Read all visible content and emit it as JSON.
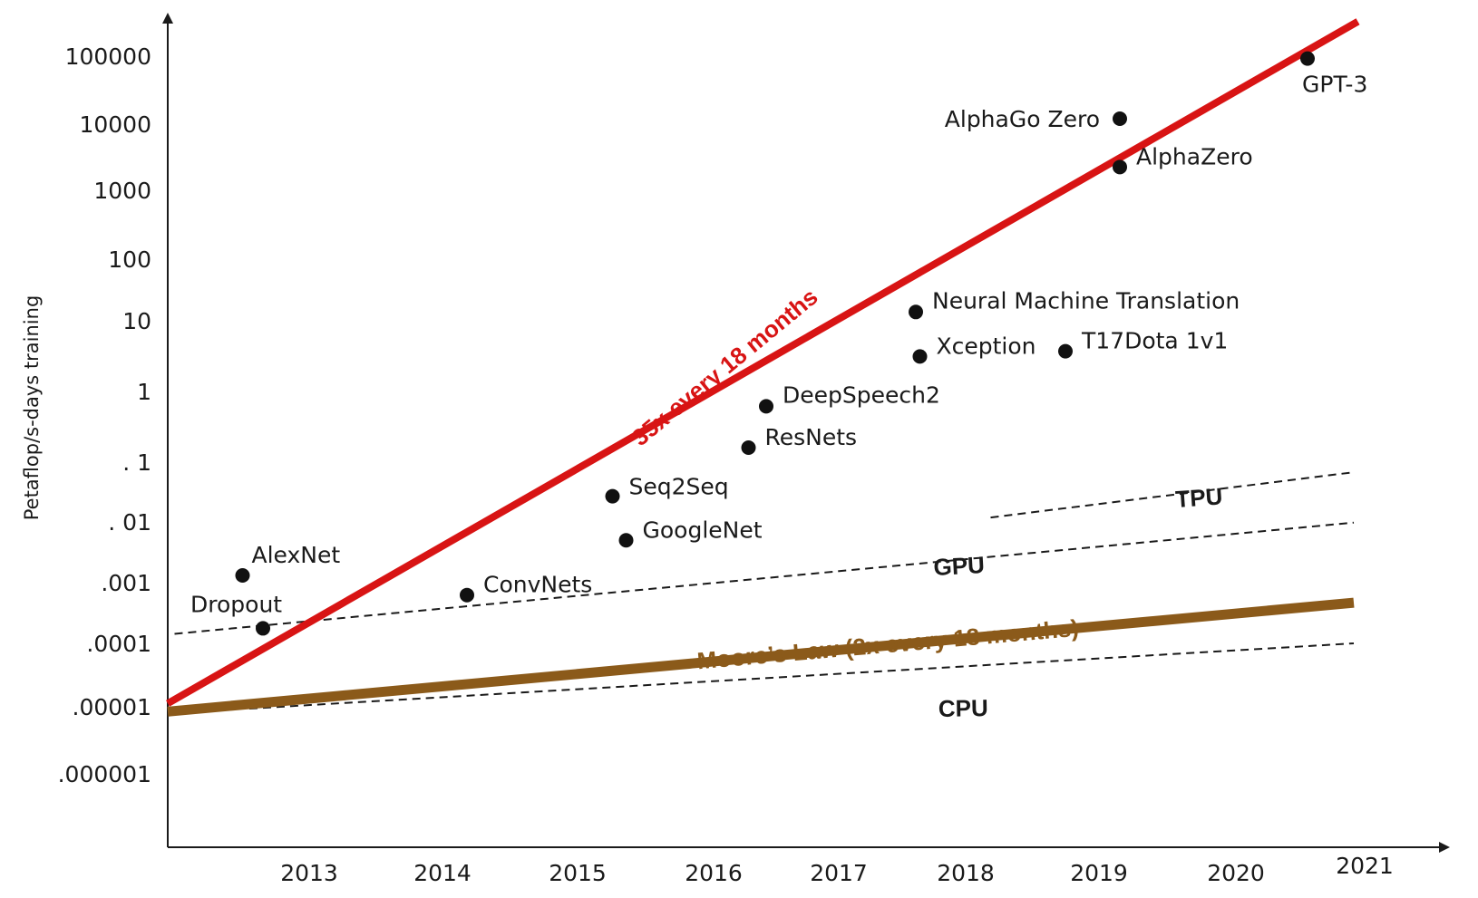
{
  "chart_data": {
    "type": "scatter",
    "ylabel": "Petaflop/s-days training",
    "y_scale": "log",
    "y_ticks": [
      "100000",
      "10000",
      "1000",
      "100",
      "10",
      "1",
      ". 1",
      ". 01",
      ".001",
      ".0001",
      ".00001",
      ".000001"
    ],
    "x_ticks": [
      "2013",
      "2014",
      "2015",
      "2016",
      "2017",
      "2018",
      "2019",
      "2020",
      "2021"
    ],
    "points": [
      {
        "label": "AlexNet",
        "x": 2012.55,
        "y": 0.0011
      },
      {
        "label": "Dropout",
        "x": 2012.7,
        "y": 0.00017
      },
      {
        "label": "ConvNets",
        "x": 2014.2,
        "y": 0.00055
      },
      {
        "label": "Seq2Seq",
        "x": 2015.27,
        "y": 0.018
      },
      {
        "label": "GoogleNet",
        "x": 2015.37,
        "y": 0.0038
      },
      {
        "label": "ResNets",
        "x": 2016.27,
        "y": 0.1
      },
      {
        "label": "DeepSpeech2",
        "x": 2016.4,
        "y": 0.43
      },
      {
        "label": "Neural Machine Translation",
        "x": 2017.5,
        "y": 12
      },
      {
        "label": "Xception",
        "x": 2017.53,
        "y": 2.5
      },
      {
        "label": "T17Dota 1v1",
        "x": 2018.6,
        "y": 3
      },
      {
        "label": "AlphaGo Zero",
        "x": 2019.0,
        "y": 11000
      },
      {
        "label": "AlphaZero",
        "x": 2019.0,
        "y": 2000
      },
      {
        "label": "GPT-3",
        "x": 2020.38,
        "y": 92000
      }
    ],
    "trend_lines": [
      {
        "name": "35x every 18 months",
        "color": "#d81414",
        "from": [
          2012.0,
          1.2e-05
        ],
        "to": [
          2020.75,
          340000
        ]
      },
      {
        "name": "Moore’s Law (2x every 18 months)",
        "color": "#8b5a1a",
        "from": [
          2012.0,
          9e-06
        ],
        "to": [
          2020.72,
          0.00042
        ]
      }
    ],
    "dashed_lines": [
      {
        "name": "TPU",
        "from": [
          2018.05,
          0.0085
        ],
        "to": [
          2020.72,
          0.042
        ]
      },
      {
        "name": "GPU",
        "from": [
          2012.05,
          0.00014
        ],
        "to": [
          2020.72,
          0.0071
        ]
      },
      {
        "name": "CPU",
        "from": [
          2012.6,
          1e-05
        ],
        "to": [
          2020.72,
          0.0001
        ]
      }
    ]
  }
}
